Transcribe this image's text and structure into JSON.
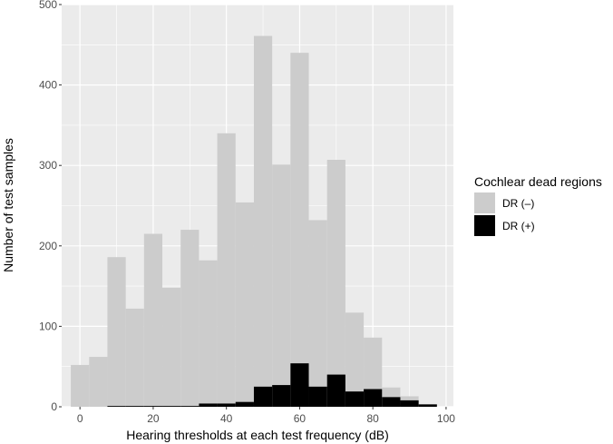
{
  "chart_data": {
    "type": "bar",
    "subtype": "overlaid-histogram",
    "xlabel": "Hearing thresholds at each test frequency (dB)",
    "ylabel": "Number of test samples",
    "xlim": [
      -5,
      102
    ],
    "ylim": [
      0,
      500
    ],
    "x_ticks": [
      0,
      20,
      40,
      60,
      80,
      100
    ],
    "y_ticks": [
      0,
      100,
      200,
      300,
      400,
      500
    ],
    "bin_width": 5,
    "grid": true,
    "legend": {
      "title": "Cochlear dead regions",
      "position": "right",
      "entries": [
        {
          "label": "DR (–)",
          "color": "#cccccc"
        },
        {
          "label": "DR (+)",
          "color": "#000000"
        }
      ]
    },
    "series": [
      {
        "name": "DR (–)",
        "color": "#cccccc",
        "bin_centers": [
          0,
          5,
          10,
          15,
          20,
          25,
          30,
          35,
          40,
          45,
          50,
          55,
          60,
          65,
          70,
          75,
          80,
          85,
          90,
          95
        ],
        "values": [
          52,
          62,
          186,
          122,
          215,
          148,
          220,
          182,
          340,
          254,
          461,
          301,
          440,
          232,
          307,
          117,
          86,
          24,
          13,
          0
        ]
      },
      {
        "name": "DR (+)",
        "color": "#000000",
        "bin_centers": [
          0,
          5,
          10,
          15,
          20,
          25,
          30,
          35,
          40,
          45,
          50,
          55,
          60,
          65,
          70,
          75,
          80,
          85,
          90,
          95
        ],
        "values": [
          0,
          0,
          1,
          1,
          1,
          1,
          1,
          4,
          4,
          6,
          25,
          27,
          54,
          25,
          40,
          19,
          22,
          12,
          8,
          3
        ]
      }
    ]
  }
}
